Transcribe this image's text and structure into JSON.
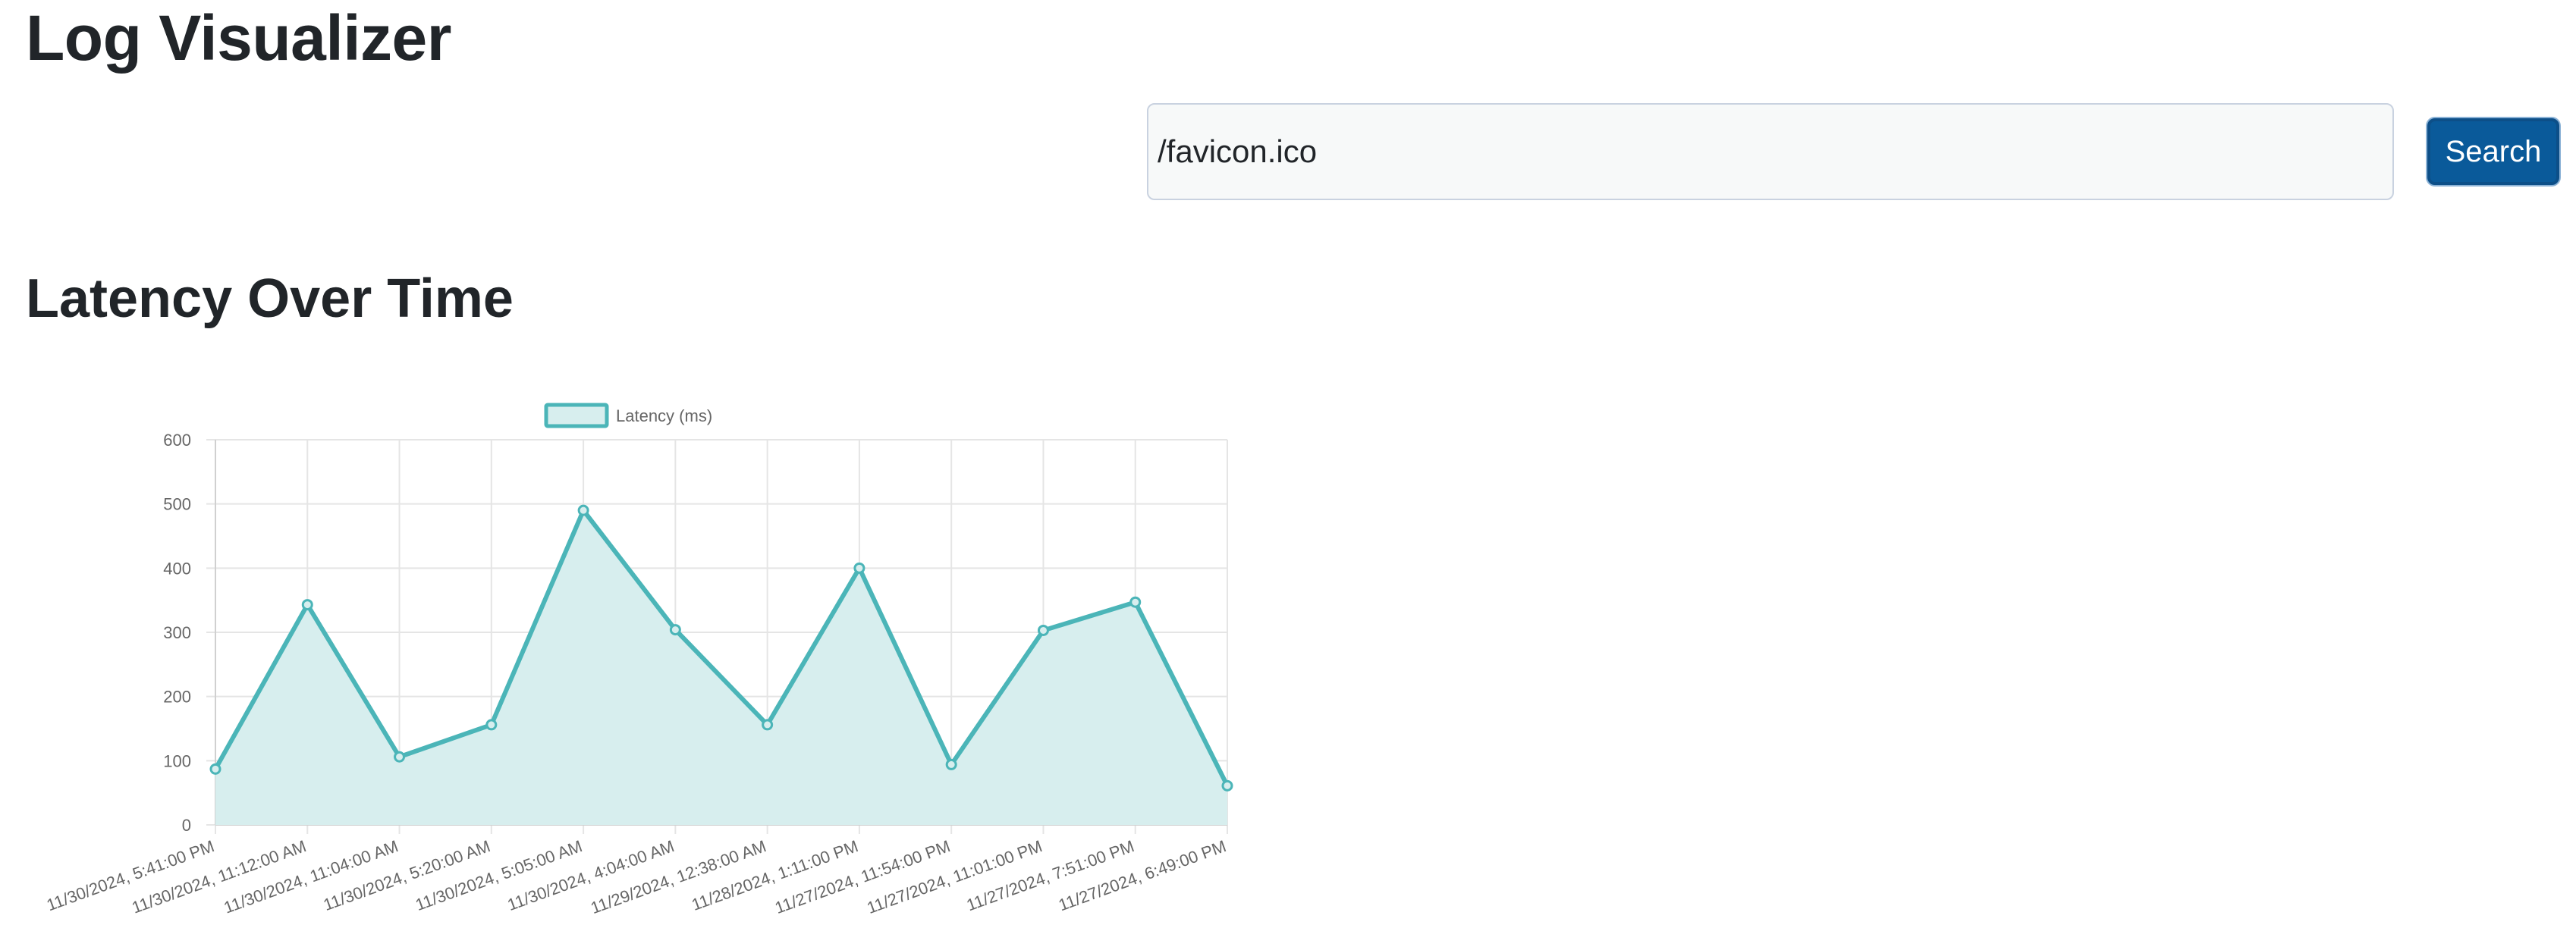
{
  "app": {
    "title": "Log Visualizer"
  },
  "search": {
    "value": "/favicon.ico",
    "button_label": "Search"
  },
  "section": {
    "title": "Latency Over Time"
  },
  "colors": {
    "line": "#4bb5b8",
    "fill": "#d7eeee",
    "button": "#0a5a9a"
  },
  "chart_data": {
    "type": "line",
    "title": "",
    "legend": {
      "label": "Latency (ms)",
      "position": "top"
    },
    "xlabel": "",
    "ylabel": "",
    "ylim": [
      0,
      600
    ],
    "yticks": [
      0,
      100,
      200,
      300,
      400,
      500,
      600
    ],
    "categories": [
      "11/30/2024, 5:41:00 PM",
      "11/30/2024, 11:12:00 AM",
      "11/30/2024, 11:04:00 AM",
      "11/30/2024, 5:20:00 AM",
      "11/30/2024, 5:05:00 AM",
      "11/30/2024, 4:04:00 AM",
      "11/29/2024, 12:38:00 AM",
      "11/28/2024, 1:11:00 PM",
      "11/27/2024, 11:54:00 PM",
      "11/27/2024, 11:01:00 PM",
      "11/27/2024, 7:51:00 PM",
      "11/27/2024, 6:49:00 PM"
    ],
    "series": [
      {
        "name": "Latency (ms)",
        "values": [
          87,
          343,
          106,
          156,
          490,
          304,
          156,
          400,
          94,
          303,
          347,
          61
        ]
      }
    ],
    "grid": true,
    "fill": true
  }
}
